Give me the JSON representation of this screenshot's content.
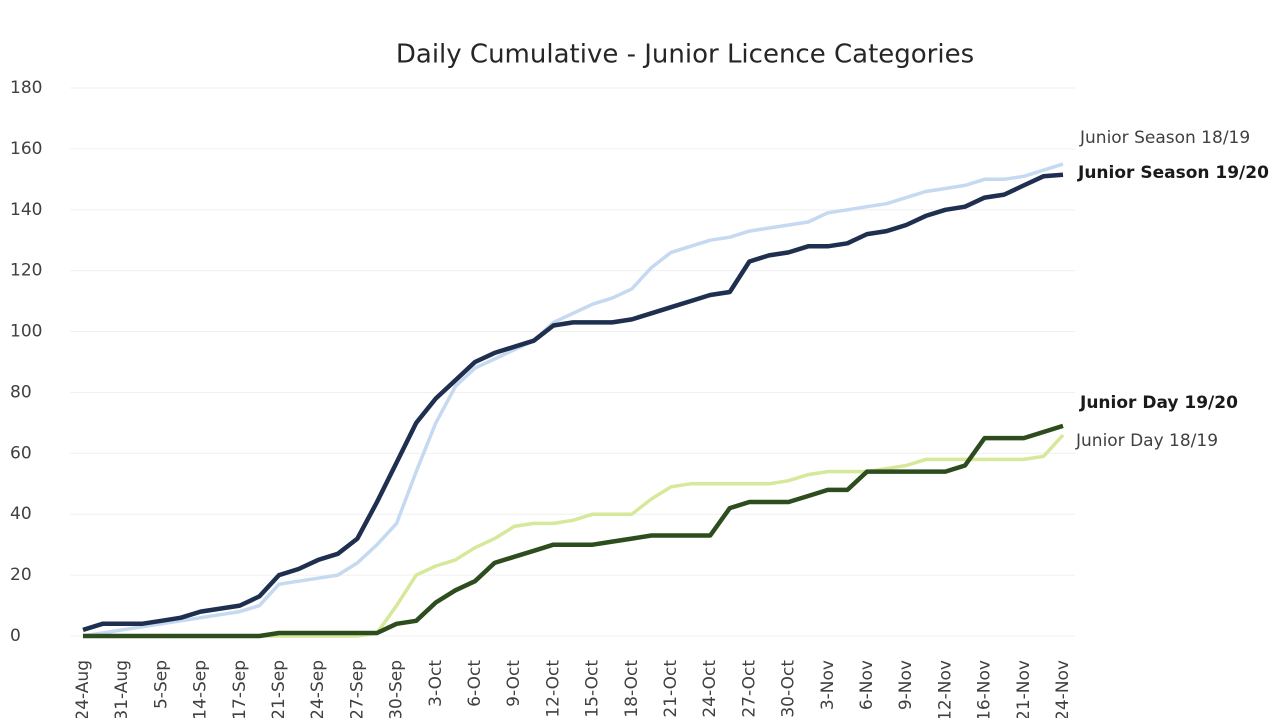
{
  "chart_data": {
    "type": "line",
    "title": "Daily Cumulative - Junior Licence Categories",
    "categories": [
      "24-Aug",
      null,
      "31-Aug",
      null,
      "5-Sep",
      null,
      "14-Sep",
      null,
      "17-Sep",
      null,
      "21-Sep",
      null,
      "24-Sep",
      null,
      "27-Sep",
      null,
      "30-Sep",
      null,
      "3-Oct",
      null,
      "6-Oct",
      null,
      "9-Oct",
      null,
      "12-Oct",
      null,
      "15-Oct",
      null,
      "18-Oct",
      null,
      "21-Oct",
      null,
      "24-Oct",
      null,
      "27-Oct",
      null,
      "30-Oct",
      null,
      "3-Nov",
      null,
      "6-Nov",
      null,
      "9-Nov",
      null,
      "12-Nov",
      null,
      "16-Nov",
      null,
      "21-Nov",
      null,
      "24-Nov"
    ],
    "series": [
      {
        "name": "Junior Season 18/19",
        "color": "#c5d9f1",
        "values": [
          0,
          1,
          2,
          3,
          4,
          5,
          6,
          7,
          8,
          10,
          17,
          18,
          19,
          20,
          24,
          30,
          37,
          54,
          70,
          82,
          88,
          91,
          94,
          97,
          103,
          106,
          109,
          111,
          114,
          121,
          126,
          128,
          130,
          131,
          133,
          134,
          135,
          136,
          139,
          140,
          141,
          142,
          144,
          146,
          147,
          148,
          150,
          150,
          151,
          153,
          155
        ]
      },
      {
        "name": "Junior Season 19/20",
        "color": "#1f2f4f",
        "values": [
          2,
          4,
          4,
          4,
          5,
          6,
          8,
          9,
          10,
          13,
          20,
          22,
          25,
          27,
          32,
          44,
          57,
          70,
          78,
          84,
          90,
          93,
          95,
          97,
          102,
          103,
          103,
          103,
          104,
          106,
          108,
          110,
          112,
          113,
          123,
          125,
          126,
          128,
          128,
          129,
          132,
          133,
          135,
          138,
          140,
          141,
          144,
          145,
          148,
          151,
          151.5
        ]
      },
      {
        "name": "Junior Day 18/19",
        "color": "#d6e89a",
        "values": [
          0,
          0,
          0,
          0,
          0,
          0,
          0,
          0,
          0,
          0,
          0,
          0,
          0,
          0,
          0,
          1,
          10,
          20,
          23,
          25,
          29,
          32,
          36,
          37,
          37,
          38,
          40,
          40,
          40,
          45,
          49,
          50,
          50,
          50,
          50,
          50,
          51,
          53,
          54,
          54,
          54,
          55,
          56,
          58,
          58,
          58,
          58,
          58,
          58,
          59,
          66
        ]
      },
      {
        "name": "Junior Day 19/20",
        "color": "#2e4d1f",
        "values": [
          0,
          0,
          0,
          0,
          0,
          0,
          0,
          0,
          0,
          0,
          1,
          1,
          1,
          1,
          1,
          1,
          4,
          5,
          11,
          15,
          18,
          24,
          26,
          28,
          30,
          30,
          30,
          31,
          32,
          33,
          33,
          33,
          33,
          42,
          44,
          44,
          44,
          46,
          48,
          48,
          54,
          54,
          54,
          54,
          54,
          56,
          65,
          65,
          65,
          67,
          69
        ]
      }
    ],
    "ylim": [
      0,
      180
    ],
    "yticks": [
      0,
      20,
      40,
      60,
      80,
      100,
      120,
      140,
      160,
      180
    ],
    "grid": true
  }
}
